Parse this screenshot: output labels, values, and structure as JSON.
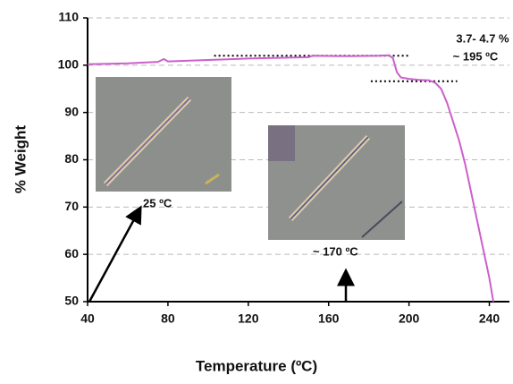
{
  "chart_data": {
    "type": "line",
    "x_label": "Temperature (ºC)",
    "y_label": "% Weight",
    "x": [
      40,
      60,
      75,
      78,
      80,
      100,
      120,
      150,
      152,
      170,
      185,
      190,
      192,
      194,
      196,
      200,
      205,
      210,
      213,
      216,
      219,
      222,
      225,
      228,
      231,
      234,
      237,
      240,
      242
    ],
    "values": [
      100.2,
      100.4,
      100.7,
      101.3,
      100.8,
      101.1,
      101.4,
      101.7,
      102,
      101.9,
      102,
      102.1,
      101.5,
      98.5,
      97.4,
      97.1,
      96.9,
      96.8,
      96.3,
      95,
      92,
      88,
      84,
      79,
      73,
      67,
      61,
      55,
      50
    ],
    "color": "#cc5fcc",
    "xlim": [
      40,
      250
    ],
    "ylim": [
      50,
      110
    ],
    "xticks": [
      40,
      80,
      120,
      160,
      200,
      240
    ],
    "yticks": [
      50,
      60,
      70,
      80,
      90,
      100,
      110
    ],
    "grid": true,
    "reference_lines": [
      {
        "x": [
          103,
          200
        ],
        "y": 102
      },
      {
        "x": [
          181,
          224
        ],
        "y": 96.6
      }
    ],
    "annotations": [
      "3.7- 4.7 %",
      "~ 195 ºC",
      "25 ºC",
      "~ 170 ºC"
    ]
  }
}
